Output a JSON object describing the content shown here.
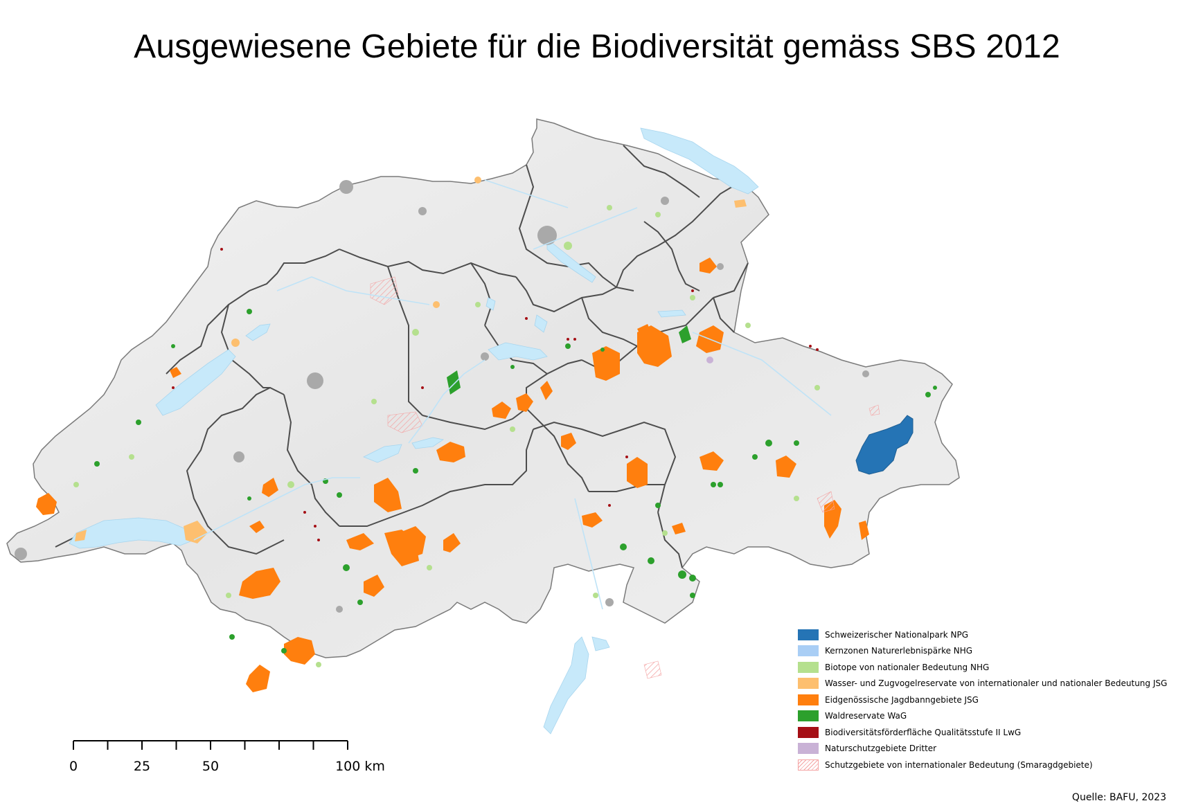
{
  "title": "Ausgewiesene Gebiete für die Biodiversität gemäss SBS 2012",
  "colors": {
    "land": "#ececec",
    "lake": "#c7e9fa",
    "river": "#bfe3f7",
    "boundary": "#4d4d4d",
    "urban": "#a9a9a9",
    "npg": "#2574b5",
    "kernzonen": "#a9cef5",
    "biotope": "#b5e08e",
    "wasser_zugvogel": "#fdbf6f",
    "jagdbann": "#ff7f0e",
    "waldreservate": "#2ca02c",
    "bff_qii": "#a50f15",
    "naturschutz_dritter": "#c9b2d6",
    "smaragd": "#f4a3a3"
  },
  "legend": {
    "items": [
      {
        "label": "Schweizerischer Nationalpark NPG",
        "color": "#2574b5",
        "hatched": false
      },
      {
        "label": "Kernzonen Naturerlebnispärke NHG",
        "color": "#a9cef5",
        "hatched": false
      },
      {
        "label": "Biotope von nationaler Bedeutung NHG",
        "color": "#b5e08e",
        "hatched": false
      },
      {
        "label": "Wasser- und Zugvogelreservate von internationaler und nationaler Bedeutung JSG",
        "color": "#fdbf6f",
        "hatched": false
      },
      {
        "label": "Eidgenössische Jagdbanngebiete JSG",
        "color": "#ff7f0e",
        "hatched": false
      },
      {
        "label": "Waldreservate WaG",
        "color": "#2ca02c",
        "hatched": false
      },
      {
        "label": "Biodiversitätsförderfläche Qualitätsstufe II LwG",
        "color": "#a50f15",
        "hatched": false
      },
      {
        "label": "Naturschutzgebiete Dritter",
        "color": "#c9b2d6",
        "hatched": false
      },
      {
        "label": "Schutzgebiete von internationaler Bedeutung (Smaragdgebiete)",
        "color": "#f4a3a3",
        "hatched": true
      }
    ]
  },
  "scalebar": {
    "labels": [
      "0",
      "25",
      "50",
      "100 km"
    ],
    "values_km": [
      0,
      25,
      50,
      100
    ],
    "max_km": 100,
    "minor_divisions": 8
  },
  "source": "Quelle: BAFU, 2023"
}
